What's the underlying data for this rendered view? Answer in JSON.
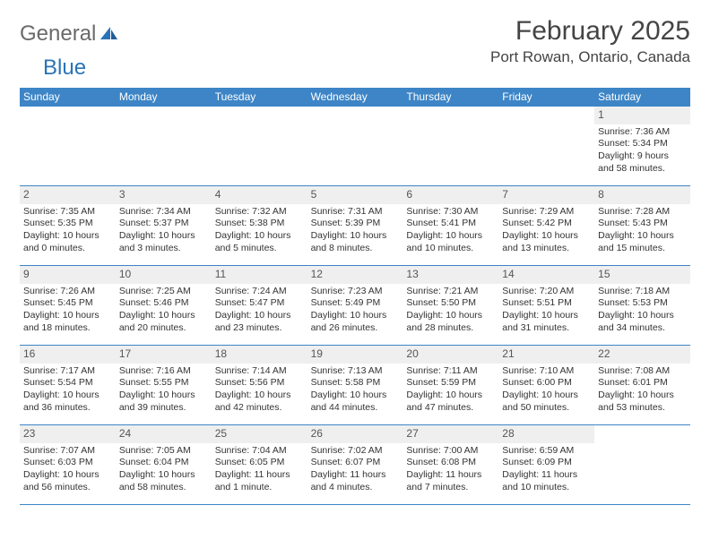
{
  "brand": {
    "part1": "General",
    "part2": "Blue"
  },
  "header": {
    "month_title": "February 2025",
    "location": "Port Rowan, Ontario, Canada"
  },
  "colors": {
    "header_bar": "#3d85c6",
    "daynum_bg": "#efefef",
    "rule": "#3d85c6",
    "text": "#333333",
    "logo_gray": "#6a6a6a",
    "logo_blue": "#2a73b8"
  },
  "days_of_week": [
    "Sunday",
    "Monday",
    "Tuesday",
    "Wednesday",
    "Thursday",
    "Friday",
    "Saturday"
  ],
  "weeks": [
    [
      {
        "n": "",
        "sunrise": "",
        "sunset": "",
        "daylight": ""
      },
      {
        "n": "",
        "sunrise": "",
        "sunset": "",
        "daylight": ""
      },
      {
        "n": "",
        "sunrise": "",
        "sunset": "",
        "daylight": ""
      },
      {
        "n": "",
        "sunrise": "",
        "sunset": "",
        "daylight": ""
      },
      {
        "n": "",
        "sunrise": "",
        "sunset": "",
        "daylight": ""
      },
      {
        "n": "",
        "sunrise": "",
        "sunset": "",
        "daylight": ""
      },
      {
        "n": "1",
        "sunrise": "Sunrise: 7:36 AM",
        "sunset": "Sunset: 5:34 PM",
        "daylight": "Daylight: 9 hours and 58 minutes."
      }
    ],
    [
      {
        "n": "2",
        "sunrise": "Sunrise: 7:35 AM",
        "sunset": "Sunset: 5:35 PM",
        "daylight": "Daylight: 10 hours and 0 minutes."
      },
      {
        "n": "3",
        "sunrise": "Sunrise: 7:34 AM",
        "sunset": "Sunset: 5:37 PM",
        "daylight": "Daylight: 10 hours and 3 minutes."
      },
      {
        "n": "4",
        "sunrise": "Sunrise: 7:32 AM",
        "sunset": "Sunset: 5:38 PM",
        "daylight": "Daylight: 10 hours and 5 minutes."
      },
      {
        "n": "5",
        "sunrise": "Sunrise: 7:31 AM",
        "sunset": "Sunset: 5:39 PM",
        "daylight": "Daylight: 10 hours and 8 minutes."
      },
      {
        "n": "6",
        "sunrise": "Sunrise: 7:30 AM",
        "sunset": "Sunset: 5:41 PM",
        "daylight": "Daylight: 10 hours and 10 minutes."
      },
      {
        "n": "7",
        "sunrise": "Sunrise: 7:29 AM",
        "sunset": "Sunset: 5:42 PM",
        "daylight": "Daylight: 10 hours and 13 minutes."
      },
      {
        "n": "8",
        "sunrise": "Sunrise: 7:28 AM",
        "sunset": "Sunset: 5:43 PM",
        "daylight": "Daylight: 10 hours and 15 minutes."
      }
    ],
    [
      {
        "n": "9",
        "sunrise": "Sunrise: 7:26 AM",
        "sunset": "Sunset: 5:45 PM",
        "daylight": "Daylight: 10 hours and 18 minutes."
      },
      {
        "n": "10",
        "sunrise": "Sunrise: 7:25 AM",
        "sunset": "Sunset: 5:46 PM",
        "daylight": "Daylight: 10 hours and 20 minutes."
      },
      {
        "n": "11",
        "sunrise": "Sunrise: 7:24 AM",
        "sunset": "Sunset: 5:47 PM",
        "daylight": "Daylight: 10 hours and 23 minutes."
      },
      {
        "n": "12",
        "sunrise": "Sunrise: 7:23 AM",
        "sunset": "Sunset: 5:49 PM",
        "daylight": "Daylight: 10 hours and 26 minutes."
      },
      {
        "n": "13",
        "sunrise": "Sunrise: 7:21 AM",
        "sunset": "Sunset: 5:50 PM",
        "daylight": "Daylight: 10 hours and 28 minutes."
      },
      {
        "n": "14",
        "sunrise": "Sunrise: 7:20 AM",
        "sunset": "Sunset: 5:51 PM",
        "daylight": "Daylight: 10 hours and 31 minutes."
      },
      {
        "n": "15",
        "sunrise": "Sunrise: 7:18 AM",
        "sunset": "Sunset: 5:53 PM",
        "daylight": "Daylight: 10 hours and 34 minutes."
      }
    ],
    [
      {
        "n": "16",
        "sunrise": "Sunrise: 7:17 AM",
        "sunset": "Sunset: 5:54 PM",
        "daylight": "Daylight: 10 hours and 36 minutes."
      },
      {
        "n": "17",
        "sunrise": "Sunrise: 7:16 AM",
        "sunset": "Sunset: 5:55 PM",
        "daylight": "Daylight: 10 hours and 39 minutes."
      },
      {
        "n": "18",
        "sunrise": "Sunrise: 7:14 AM",
        "sunset": "Sunset: 5:56 PM",
        "daylight": "Daylight: 10 hours and 42 minutes."
      },
      {
        "n": "19",
        "sunrise": "Sunrise: 7:13 AM",
        "sunset": "Sunset: 5:58 PM",
        "daylight": "Daylight: 10 hours and 44 minutes."
      },
      {
        "n": "20",
        "sunrise": "Sunrise: 7:11 AM",
        "sunset": "Sunset: 5:59 PM",
        "daylight": "Daylight: 10 hours and 47 minutes."
      },
      {
        "n": "21",
        "sunrise": "Sunrise: 7:10 AM",
        "sunset": "Sunset: 6:00 PM",
        "daylight": "Daylight: 10 hours and 50 minutes."
      },
      {
        "n": "22",
        "sunrise": "Sunrise: 7:08 AM",
        "sunset": "Sunset: 6:01 PM",
        "daylight": "Daylight: 10 hours and 53 minutes."
      }
    ],
    [
      {
        "n": "23",
        "sunrise": "Sunrise: 7:07 AM",
        "sunset": "Sunset: 6:03 PM",
        "daylight": "Daylight: 10 hours and 56 minutes."
      },
      {
        "n": "24",
        "sunrise": "Sunrise: 7:05 AM",
        "sunset": "Sunset: 6:04 PM",
        "daylight": "Daylight: 10 hours and 58 minutes."
      },
      {
        "n": "25",
        "sunrise": "Sunrise: 7:04 AM",
        "sunset": "Sunset: 6:05 PM",
        "daylight": "Daylight: 11 hours and 1 minute."
      },
      {
        "n": "26",
        "sunrise": "Sunrise: 7:02 AM",
        "sunset": "Sunset: 6:07 PM",
        "daylight": "Daylight: 11 hours and 4 minutes."
      },
      {
        "n": "27",
        "sunrise": "Sunrise: 7:00 AM",
        "sunset": "Sunset: 6:08 PM",
        "daylight": "Daylight: 11 hours and 7 minutes."
      },
      {
        "n": "28",
        "sunrise": "Sunrise: 6:59 AM",
        "sunset": "Sunset: 6:09 PM",
        "daylight": "Daylight: 11 hours and 10 minutes."
      },
      {
        "n": "",
        "sunrise": "",
        "sunset": "",
        "daylight": ""
      }
    ]
  ]
}
